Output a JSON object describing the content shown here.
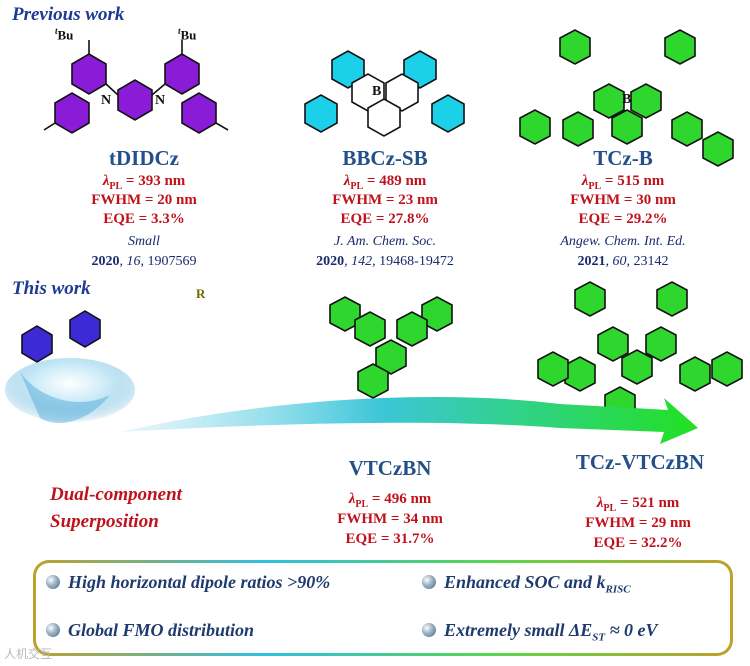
{
  "sections": {
    "previous": "Previous work",
    "this": "This work"
  },
  "compounds": [
    {
      "name": "tDIDCz",
      "lambda_value": " = 393 nm",
      "fwhm": "FWHM = 20 nm",
      "eqe": "EQE = 3.3%",
      "journal": "Small",
      "year": "2020",
      "volume": "16",
      "pages": "1907569",
      "color": "#8a1bd6"
    },
    {
      "name": "BBCz-SB",
      "lambda_value": " = 489 nm",
      "fwhm": "FWHM = 23 nm",
      "eqe": "EQE = 27.8%",
      "journal": "J. Am. Chem. Soc.",
      "year": "2020",
      "volume": "142",
      "pages": "19468-19472",
      "color": "#1cd0ea"
    },
    {
      "name": "TCz-B",
      "lambda_value": " = 515 nm",
      "fwhm": "FWHM = 30 nm",
      "eqe": "EQE = 29.2%",
      "journal": "Angew. Chem. Int. Ed.",
      "year": "2021",
      "volume": "60",
      "pages": "23142",
      "color": "#2ed62e"
    },
    {
      "name": "VTCzBN",
      "lambda_value": " = 496 nm",
      "fwhm": "FWHM = 34 nm",
      "eqe": "EQE = 31.7%",
      "color": "#2ed62e"
    },
    {
      "name": "TCz-VTCzBN",
      "lambda_value": " = 521 nm",
      "fwhm": "FWHM = 29 nm",
      "eqe": "EQE = 32.2%",
      "color": "#2ed62e"
    }
  ],
  "lambda_symbol": "λ",
  "lambda_sub": "PL",
  "structure_labels": {
    "tBu_t": "t",
    "tBu_rest": "Bu",
    "N": "N",
    "B": "B",
    "R": "R"
  },
  "dual_component": [
    "Dual-component",
    "Superposition"
  ],
  "features": {
    "f1": "High horizontal dipole ratios >90%",
    "f2_main": "Enhanced SOC and k",
    "f2_sub": "RISC",
    "f3": "Global FMO distribution",
    "f4_main": "Extremely small ΔE",
    "f4_sub": "ST",
    "f4_tail": " ≈ 0 eV"
  },
  "watermark": "人机交互"
}
